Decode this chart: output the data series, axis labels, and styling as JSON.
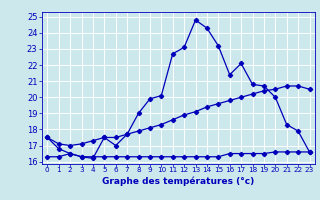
{
  "title": "Graphe des températures (°c)",
  "bg_color": "#cce8ec",
  "grid_color": "#ffffff",
  "line_color": "#0000bb",
  "xlim": [
    -0.5,
    23.5
  ],
  "ylim": [
    15.85,
    25.3
  ],
  "yticks": [
    16,
    17,
    18,
    19,
    20,
    21,
    22,
    23,
    24,
    25
  ],
  "xticks": [
    0,
    1,
    2,
    3,
    4,
    5,
    6,
    7,
    8,
    9,
    10,
    11,
    12,
    13,
    14,
    15,
    16,
    17,
    18,
    19,
    20,
    21,
    22,
    23
  ],
  "series1_x": [
    0,
    1,
    2,
    3,
    4,
    5,
    6,
    7,
    8,
    9,
    10,
    11,
    12,
    13,
    14,
    15,
    16,
    17,
    18,
    19,
    20,
    21,
    22,
    23
  ],
  "series1_y": [
    17.5,
    16.8,
    16.5,
    16.3,
    16.2,
    17.5,
    17.0,
    17.7,
    19.0,
    19.9,
    20.1,
    22.7,
    23.1,
    24.8,
    24.3,
    23.2,
    21.4,
    22.1,
    20.8,
    20.7,
    20.0,
    18.3,
    17.9,
    16.6
  ],
  "series2_x": [
    0,
    1,
    2,
    3,
    4,
    5,
    6,
    7,
    8,
    9,
    10,
    11,
    12,
    13,
    14,
    15,
    16,
    17,
    18,
    19,
    20,
    21,
    22,
    23
  ],
  "series2_y": [
    17.5,
    17.1,
    17.0,
    17.1,
    17.3,
    17.5,
    17.5,
    17.7,
    17.9,
    18.1,
    18.3,
    18.6,
    18.9,
    19.1,
    19.4,
    19.6,
    19.8,
    20.0,
    20.2,
    20.4,
    20.5,
    20.7,
    20.7,
    20.5
  ],
  "series3_x": [
    0,
    1,
    2,
    3,
    4,
    5,
    6,
    7,
    8,
    9,
    10,
    11,
    12,
    13,
    14,
    15,
    16,
    17,
    18,
    19,
    20,
    21,
    22,
    23
  ],
  "series3_y": [
    16.3,
    16.3,
    16.5,
    16.3,
    16.3,
    16.3,
    16.3,
    16.3,
    16.3,
    16.3,
    16.3,
    16.3,
    16.3,
    16.3,
    16.3,
    16.3,
    16.5,
    16.5,
    16.5,
    16.5,
    16.6,
    16.6,
    16.6,
    16.6
  ]
}
